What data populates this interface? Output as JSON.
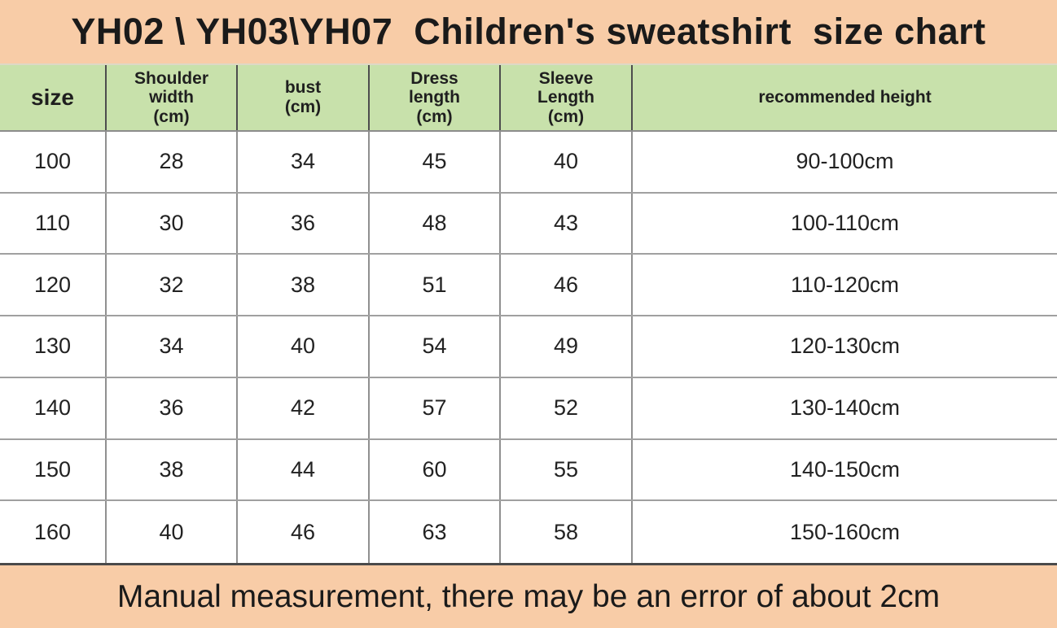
{
  "chart_data": {
    "type": "table",
    "title": "YH02 \\ YH03\\YH07  Children's sweatshirt  size chart",
    "columns": [
      "size",
      "Shoulder\nwidth\n(cm)",
      "bust\n(cm)",
      "Dress\nlength\n(cm)",
      "Sleeve\nLength\n(cm)",
      "recommended height"
    ],
    "rows": [
      [
        "100",
        "28",
        "34",
        "45",
        "40",
        "90-100cm"
      ],
      [
        "110",
        "30",
        "36",
        "48",
        "43",
        "100-110cm"
      ],
      [
        "120",
        "32",
        "38",
        "51",
        "46",
        "110-120cm"
      ],
      [
        "130",
        "34",
        "40",
        "54",
        "49",
        "120-130cm"
      ],
      [
        "140",
        "36",
        "42",
        "57",
        "52",
        "130-140cm"
      ],
      [
        "150",
        "38",
        "44",
        "60",
        "55",
        "140-150cm"
      ],
      [
        "160",
        "40",
        "46",
        "63",
        "58",
        "150-160cm"
      ]
    ],
    "footnote": "Manual measurement, there may be an error of about 2cm",
    "units": "cm"
  },
  "colors": {
    "title_bg": "#f8cca7",
    "header_bg": "#c8e1ab",
    "row_bg": "#ffffff",
    "footer_bg": "#f8cca7",
    "text": "#1c1c1c",
    "header_separator": "#4d4d4d",
    "grid_line": "#909090"
  }
}
